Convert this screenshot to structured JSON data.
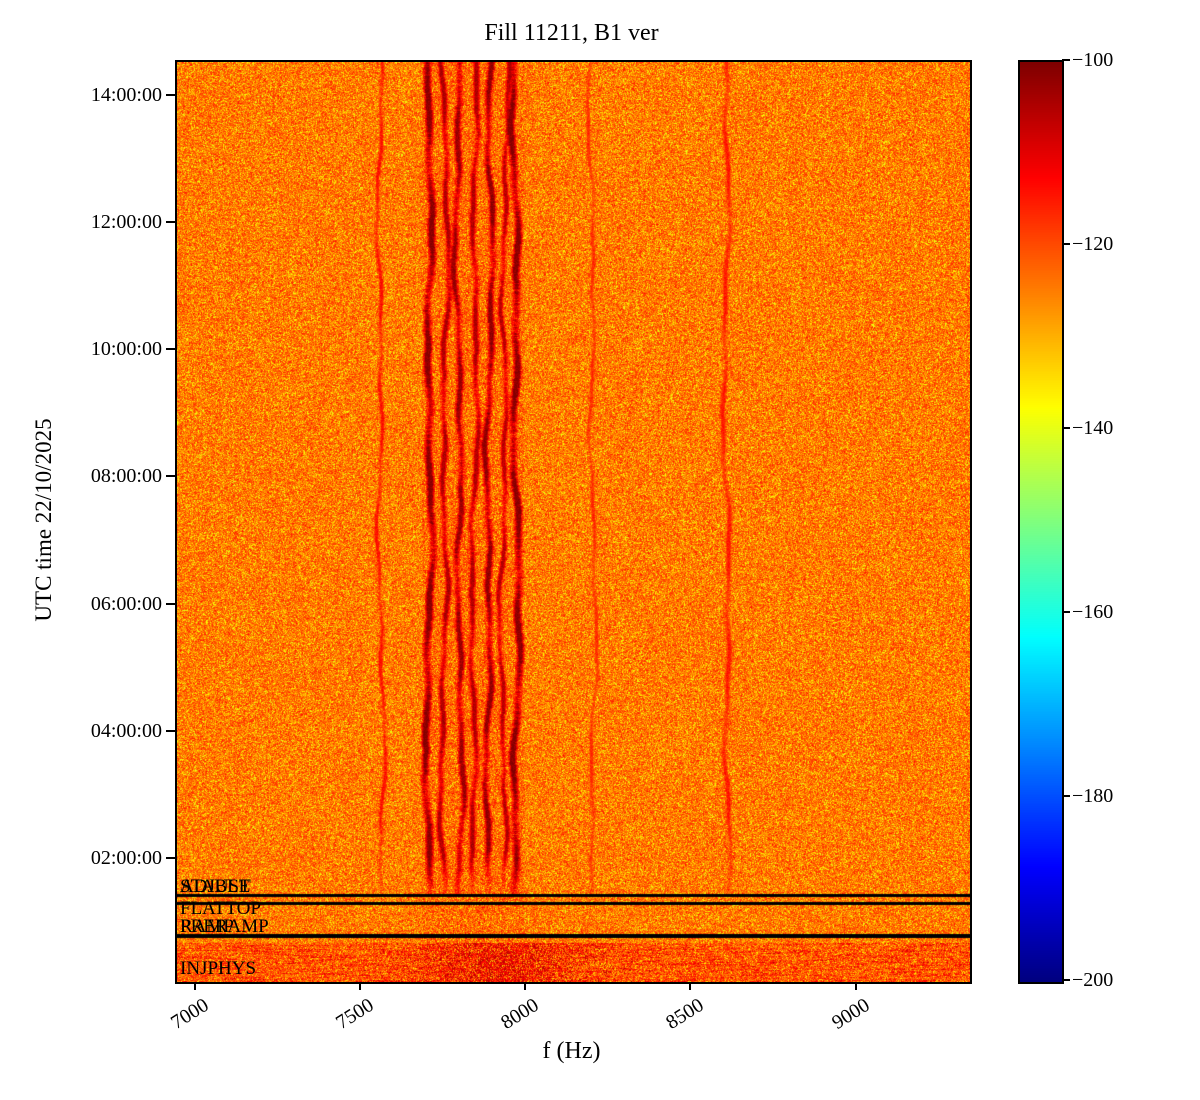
{
  "title": "Fill 11211, B1 ver",
  "chart_data": {
    "type": "heatmap",
    "subtype": "spectrogram",
    "title": "Fill 11211, B1 ver",
    "xlabel": "f (Hz)",
    "ylabel": "UTC time 22/10/2025",
    "x_range_hz": [
      6940,
      9340
    ],
    "x_ticks": [
      7000,
      7500,
      8000,
      8500,
      9000
    ],
    "y_ticks": [
      "02:00:00",
      "04:00:00",
      "06:00:00",
      "08:00:00",
      "10:00:00",
      "12:00:00",
      "14:00:00"
    ],
    "y_tick_hours": [
      2,
      4,
      6,
      8,
      10,
      12,
      14
    ],
    "y_range_hours": [
      0.08,
      14.55
    ],
    "grid": false,
    "colorbar": {
      "colormap": "jet",
      "min": -200,
      "max": -100,
      "ticks": [
        -100,
        -120,
        -140,
        -160,
        -180,
        -200
      ],
      "position": "right"
    },
    "background_level_db": [
      -131,
      -117
    ],
    "red_zone_hz": [
      7680,
      7990
    ],
    "spectral_lines_hz": [
      {
        "freq": 7700,
        "level": -101,
        "width": 2.4
      },
      {
        "freq": 7748,
        "level": -105,
        "width": 1.8
      },
      {
        "freq": 7792,
        "level": -103,
        "width": 2.0
      },
      {
        "freq": 7838,
        "level": -105,
        "width": 1.8
      },
      {
        "freq": 7884,
        "level": -102,
        "width": 2.0
      },
      {
        "freq": 7928,
        "level": -106,
        "width": 1.6
      },
      {
        "freq": 7964,
        "level": -101,
        "width": 2.4
      }
    ],
    "faint_lines_hz": [
      {
        "freq": 7556,
        "level": -114,
        "width": 1.3
      },
      {
        "freq": 8196,
        "level": -117,
        "width": 1.2
      },
      {
        "freq": 8604,
        "level": -115,
        "width": 1.6
      }
    ],
    "line_fade_h": [
      1.47,
      2.2
    ],
    "mode_boundary_lines_h": [
      {
        "time_h": 1.47,
        "thickness": 3
      },
      {
        "time_h": 1.335,
        "thickness": 3
      },
      {
        "time_h": 0.84,
        "thickness": 4
      }
    ],
    "beam_modes": [
      {
        "label": "STABLE",
        "time_h": 1.47
      },
      {
        "label": "ADJUST",
        "time_h": 1.47
      },
      {
        "label": "FLATTOP",
        "time_h": 1.12
      },
      {
        "label": "RAMP",
        "time_h": 0.84
      },
      {
        "label": "PRERAMP",
        "time_h": 0.84
      },
      {
        "label": "INJPHYS",
        "time_h": 0.17
      }
    ],
    "injphys_band_top_h": 0.7,
    "injphys_hotspot_hz": {
      "center": 7940,
      "sigma": 165
    }
  }
}
